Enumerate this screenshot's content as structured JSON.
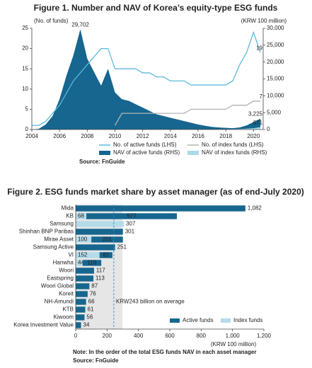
{
  "chart_data": [
    {
      "type": "combo",
      "title": "Figure 1. Number and NAV of Korea’s equity-type ESG funds",
      "ylabel": "(No. of funds)",
      "y2label": "(KRW 100 million)",
      "source": "Source: FnGuide",
      "x": [
        2004,
        2004.5,
        2005,
        2005.5,
        2006,
        2006.5,
        2007,
        2007.5,
        2008,
        2008.5,
        2009,
        2009.5,
        2010,
        2010.5,
        2011,
        2011.5,
        2012,
        2012.5,
        2013,
        2013.5,
        2014,
        2014.5,
        2015,
        2015.5,
        2016,
        2016.5,
        2017,
        2017.5,
        2018,
        2018.5,
        2019,
        2019.5,
        2020,
        2020.5
      ],
      "xlim": [
        2004,
        2020.7
      ],
      "xticks": [
        2004,
        2006,
        2008,
        2010,
        2012,
        2014,
        2016,
        2018,
        2020
      ],
      "ylim": [
        0,
        25
      ],
      "yticks": [
        0,
        5,
        10,
        15,
        20,
        25
      ],
      "y2lim": [
        0,
        30000
      ],
      "y2ticks": [
        0,
        {
          "value": 5000,
          "label": "5,000"
        },
        {
          "value": 10000,
          "label": "10,000"
        },
        {
          "value": 15000,
          "label": "15,000"
        },
        {
          "value": 20000,
          "label": "20,000"
        },
        {
          "value": 25000,
          "label": "25,000"
        },
        {
          "value": 30000,
          "label": "30,000"
        }
      ],
      "series": [
        {
          "name": "No. of active funds (LHS)",
          "type": "line",
          "axis": "y",
          "color": "#5cb9dc",
          "values": [
            1,
            1,
            2,
            4,
            6,
            9,
            12,
            14,
            16,
            18,
            20,
            20,
            15,
            15,
            15,
            15,
            14,
            14,
            13,
            13,
            12,
            12,
            12,
            11,
            11,
            11,
            11,
            11,
            11,
            12,
            16,
            19,
            24,
            19
          ],
          "value_labels": [
            null,
            null,
            null,
            null,
            null,
            null,
            null,
            null,
            null,
            null,
            null,
            null,
            null,
            null,
            null,
            null,
            null,
            null,
            null,
            null,
            null,
            null,
            null,
            null,
            null,
            null,
            null,
            null,
            null,
            null,
            null,
            null,
            null,
            "19"
          ]
        },
        {
          "name": "No. of index funds (LHS)",
          "type": "line",
          "axis": "y",
          "color": "#b3b3b3",
          "values": [
            null,
            null,
            null,
            null,
            null,
            null,
            null,
            null,
            null,
            null,
            null,
            null,
            1,
            4,
            4,
            4,
            4,
            4,
            4,
            4,
            4,
            4,
            4,
            5,
            5,
            5,
            5,
            5,
            5,
            6,
            6,
            6,
            7,
            7
          ],
          "value_labels": [
            null,
            null,
            null,
            null,
            null,
            null,
            null,
            null,
            null,
            null,
            null,
            null,
            null,
            null,
            null,
            null,
            null,
            null,
            null,
            null,
            null,
            null,
            null,
            null,
            null,
            null,
            null,
            null,
            null,
            null,
            null,
            null,
            null,
            "7"
          ]
        },
        {
          "name": "NAV of active funds (RHS)",
          "type": "area",
          "axis": "y2",
          "color": "#16668f",
          "values": [
            0,
            200,
            1500,
            4000,
            9000,
            16000,
            22000,
            29702,
            21000,
            17000,
            13000,
            18000,
            11000,
            9000,
            8500,
            7500,
            6500,
            5500,
            4500,
            4000,
            3500,
            3000,
            2500,
            2000,
            1500,
            1100,
            800,
            600,
            500,
            400,
            600,
            1200,
            2200,
            3225
          ],
          "value_labels": [
            null,
            null,
            null,
            null,
            null,
            null,
            null,
            "29,702",
            null,
            null,
            null,
            null,
            null,
            null,
            null,
            null,
            null,
            null,
            null,
            null,
            null,
            null,
            null,
            null,
            null,
            null,
            null,
            null,
            null,
            null,
            null,
            null,
            null,
            "3,225"
          ]
        },
        {
          "name": "NAV of index funds (RHS)",
          "type": "area",
          "axis": "y2",
          "color": "#a9d9e8",
          "values": [
            0,
            0,
            0,
            0,
            0,
            0,
            0,
            0,
            0,
            0,
            0,
            0,
            0,
            0,
            0,
            0,
            0,
            0,
            0,
            0,
            0,
            0,
            0,
            0,
            0,
            0,
            0,
            0,
            50,
            100,
            150,
            250,
            400,
            671
          ],
          "value_labels": [
            null,
            null,
            null,
            null,
            null,
            null,
            null,
            null,
            null,
            null,
            null,
            null,
            null,
            null,
            null,
            null,
            null,
            null,
            null,
            null,
            null,
            null,
            null,
            null,
            null,
            null,
            null,
            null,
            null,
            null,
            null,
            null,
            null,
            "671"
          ]
        }
      ]
    },
    {
      "type": "hbar",
      "stacked": true,
      "title": "Figure 2. ESG funds market share by asset manager (as of end-July 2020)",
      "xlabel": "(KRW 100 million)",
      "note": "Note: In the order of the total ESG funds NAV in each asset manager",
      "source": "Source: FnGuide",
      "categories": [
        "Mida",
        "KB",
        "Samsung",
        "Shinhan BNP Paribas",
        "Mirae Asset",
        "Samsung Active",
        "VI",
        "Hanwha",
        "Woori",
        "Eastspring",
        "Woori Global",
        "Koreit",
        "NH-Amundi",
        "KTB",
        "Kiwoom",
        "Korea Investment Value"
      ],
      "xlim": [
        0,
        1200
      ],
      "xticks": [
        0,
        200,
        400,
        600,
        800,
        {
          "value": 1000,
          "label": "1,000"
        },
        {
          "value": 1200,
          "label": "1,200"
        }
      ],
      "average": {
        "value": 243,
        "label": "KRW243 billion on average"
      },
      "series": [
        {
          "name": "Active funds",
          "color": "#16668f",
          "values": [
            1082,
            577,
            0,
            301,
            201,
            251,
            82,
            119,
            117,
            113,
            87,
            76,
            66,
            61,
            56,
            34
          ],
          "value_labels": [
            "1,082",
            "577",
            null,
            "301",
            "201",
            "251",
            "82",
            "119",
            "117",
            "113",
            "87",
            "76",
            "66",
            "61",
            "56",
            "34"
          ]
        },
        {
          "name": "Index funds",
          "color": "#b5dbe8",
          "values": [
            0,
            68,
            307,
            0,
            100,
            0,
            152,
            44,
            0,
            0,
            0,
            0,
            0,
            0,
            0,
            0
          ],
          "value_labels": [
            null,
            "68",
            "307",
            null,
            "100",
            null,
            "152",
            "44",
            null,
            null,
            null,
            null,
            null,
            null,
            null,
            null
          ]
        }
      ]
    }
  ]
}
